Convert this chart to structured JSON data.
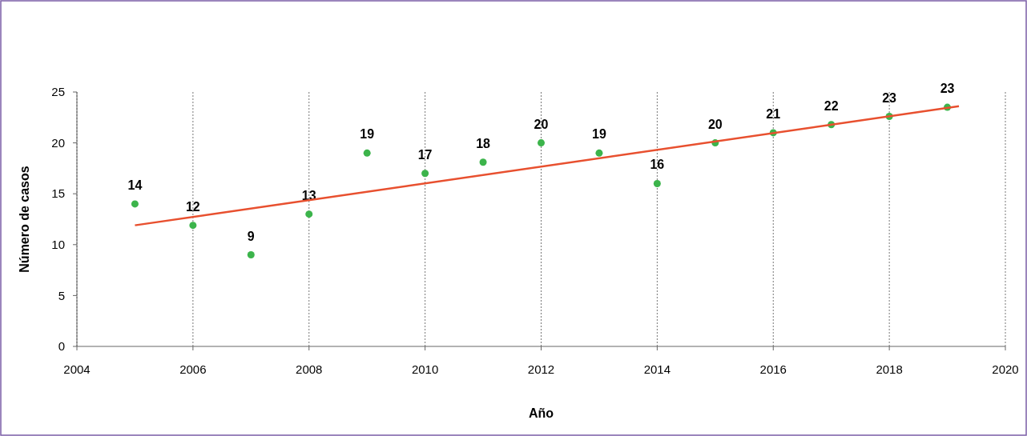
{
  "chart_data": {
    "type": "scatter",
    "xlabel": "Año",
    "ylabel": "Número de casos",
    "x": [
      2005,
      2006,
      2007,
      2008,
      2009,
      2010,
      2011,
      2012,
      2013,
      2014,
      2015,
      2016,
      2017,
      2018,
      2019
    ],
    "xlim": [
      2004,
      2020
    ],
    "xticks": [
      2004,
      2006,
      2008,
      2010,
      2012,
      2014,
      2016,
      2018,
      2020
    ],
    "ylim": [
      0,
      25
    ],
    "yticks": [
      0,
      5,
      10,
      15,
      20,
      25
    ],
    "grid": "x",
    "series": [
      {
        "color": "#3cb44b",
        "marker": "circle",
        "values": [
          14,
          11.9,
          9,
          13,
          19,
          17,
          18.1,
          20,
          19,
          16,
          20,
          21,
          21.8,
          22.6,
          23.5
        ],
        "value_labels": [
          "14",
          "12",
          "9",
          "13",
          "19",
          "17",
          "18",
          "20",
          "19",
          "16",
          "20",
          "21",
          "22",
          "23",
          "23"
        ]
      },
      {
        "type": "line",
        "color": "#e8502f",
        "x": [
          2005,
          2019.2
        ],
        "values": [
          11.9,
          23.6
        ],
        "marker": "none",
        "line_style": "solid"
      }
    ]
  }
}
